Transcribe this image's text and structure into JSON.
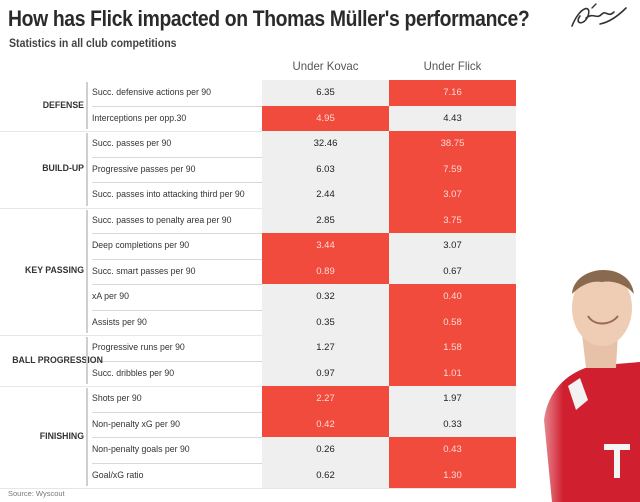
{
  "title": "How has Flick impacted on Thomas Müller's performance?",
  "subtitle": "Statistics in all club competitions",
  "source": "Source: Wyscout",
  "colors": {
    "highlight": "#f04b3c",
    "neutral": "#efefef"
  },
  "chart_data": {
    "type": "table",
    "columns": [
      "Under Kovac",
      "Under Flick"
    ],
    "groups": [
      {
        "name": "DEFENSE",
        "rows": [
          {
            "metric": "Succ. defensive actions per 90",
            "kovac": "6.35",
            "flick": "7.16",
            "better": "flick"
          },
          {
            "metric": "Interceptions per opp.30",
            "kovac": "4.95",
            "flick": "4.43",
            "better": "kovac"
          }
        ]
      },
      {
        "name": "BUILD-UP",
        "rows": [
          {
            "metric": "Succ. passes per 90",
            "kovac": "32.46",
            "flick": "38.75",
            "better": "flick"
          },
          {
            "metric": "Progressive passes per 90",
            "kovac": "6.03",
            "flick": "7.59",
            "better": "flick"
          },
          {
            "metric": "Succ. passes into attacking third per 90",
            "kovac": "2.44",
            "flick": "3.07",
            "better": "flick"
          }
        ]
      },
      {
        "name": "KEY PASSING",
        "rows": [
          {
            "metric": "Succ. passes to penalty area per 90",
            "kovac": "2.85",
            "flick": "3.75",
            "better": "flick"
          },
          {
            "metric": "Deep completions per 90",
            "kovac": "3.44",
            "flick": "3.07",
            "better": "kovac"
          },
          {
            "metric": "Succ. smart passes per 90",
            "kovac": "0.89",
            "flick": "0.67",
            "better": "kovac"
          },
          {
            "metric": "xA per 90",
            "kovac": "0.32",
            "flick": "0.40",
            "better": "flick"
          },
          {
            "metric": "Assists per 90",
            "kovac": "0.35",
            "flick": "0.58",
            "better": "flick"
          }
        ]
      },
      {
        "name": "BALL PROGRESSION",
        "rows": [
          {
            "metric": "Progressive runs per 90",
            "kovac": "1.27",
            "flick": "1.58",
            "better": "flick"
          },
          {
            "metric": "Succ. dribbles per 90",
            "kovac": "0.97",
            "flick": "1.01",
            "better": "flick"
          }
        ]
      },
      {
        "name": "FINISHING",
        "rows": [
          {
            "metric": "Shots per 90",
            "kovac": "2.27",
            "flick": "1.97",
            "better": "kovac"
          },
          {
            "metric": "Non-penalty xG per 90",
            "kovac": "0.42",
            "flick": "0.33",
            "better": "kovac"
          },
          {
            "metric": "Non-penalty goals per 90",
            "kovac": "0.26",
            "flick": "0.43",
            "better": "flick"
          },
          {
            "metric": "Goal/xG ratio",
            "kovac": "0.62",
            "flick": "1.30",
            "better": "flick"
          }
        ]
      }
    ]
  }
}
